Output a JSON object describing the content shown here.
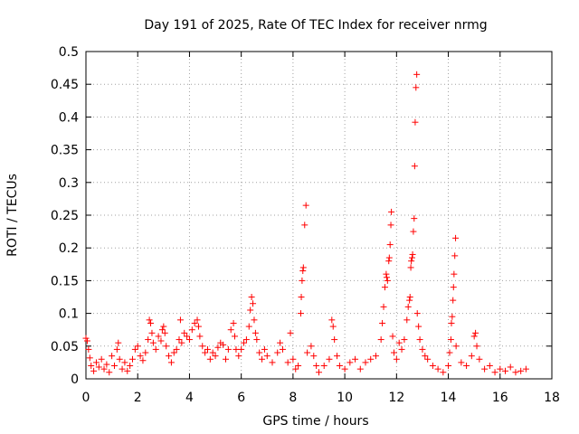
{
  "chart_data": {
    "type": "scatter",
    "title": "Day 191 of 2025, Rate Of TEC Index for receiver nrmg",
    "xlabel": "GPS time / hours",
    "ylabel": "ROTI / TECUs",
    "xlim": [
      0,
      18
    ],
    "ylim": [
      0,
      0.5
    ],
    "x_ticks": [
      0,
      2,
      4,
      6,
      8,
      10,
      12,
      14,
      16,
      18
    ],
    "y_ticks": [
      0,
      0.05,
      0.1,
      0.15,
      0.2,
      0.25,
      0.3,
      0.35,
      0.4,
      0.45,
      0.5
    ],
    "x_tick_labels": [
      "0",
      "2",
      "4",
      "6",
      "8",
      "10",
      "12",
      "14",
      "16",
      "18"
    ],
    "y_tick_labels": [
      "0",
      "0.05",
      "0.1",
      "0.15",
      "0.2",
      "0.25",
      "0.3",
      "0.35",
      "0.4",
      "0.45",
      "0.5"
    ],
    "grid": true,
    "marker": "+",
    "marker_color": "#ff0000",
    "series": [
      {
        "name": "ROTI",
        "points": [
          [
            0.0,
            0.062
          ],
          [
            0.05,
            0.058
          ],
          [
            0.1,
            0.045
          ],
          [
            0.15,
            0.032
          ],
          [
            0.2,
            0.02
          ],
          [
            0.3,
            0.012
          ],
          [
            0.4,
            0.025
          ],
          [
            0.5,
            0.018
          ],
          [
            0.6,
            0.03
          ],
          [
            0.7,
            0.015
          ],
          [
            0.8,
            0.022
          ],
          [
            0.9,
            0.01
          ],
          [
            1.0,
            0.035
          ],
          [
            1.1,
            0.02
          ],
          [
            1.2,
            0.045
          ],
          [
            1.25,
            0.055
          ],
          [
            1.3,
            0.03
          ],
          [
            1.4,
            0.015
          ],
          [
            1.5,
            0.025
          ],
          [
            1.6,
            0.012
          ],
          [
            1.7,
            0.02
          ],
          [
            1.8,
            0.03
          ],
          [
            1.9,
            0.045
          ],
          [
            2.0,
            0.05
          ],
          [
            2.1,
            0.035
          ],
          [
            2.2,
            0.028
          ],
          [
            2.3,
            0.04
          ],
          [
            2.4,
            0.06
          ],
          [
            2.45,
            0.09
          ],
          [
            2.5,
            0.085
          ],
          [
            2.55,
            0.07
          ],
          [
            2.6,
            0.055
          ],
          [
            2.7,
            0.045
          ],
          [
            2.8,
            0.065
          ],
          [
            2.9,
            0.058
          ],
          [
            2.95,
            0.075
          ],
          [
            3.0,
            0.08
          ],
          [
            3.05,
            0.07
          ],
          [
            3.1,
            0.05
          ],
          [
            3.2,
            0.035
          ],
          [
            3.3,
            0.025
          ],
          [
            3.4,
            0.04
          ],
          [
            3.5,
            0.045
          ],
          [
            3.6,
            0.06
          ],
          [
            3.65,
            0.09
          ],
          [
            3.7,
            0.055
          ],
          [
            3.8,
            0.07
          ],
          [
            3.9,
            0.065
          ],
          [
            4.0,
            0.06
          ],
          [
            4.1,
            0.075
          ],
          [
            4.2,
            0.085
          ],
          [
            4.3,
            0.09
          ],
          [
            4.35,
            0.08
          ],
          [
            4.4,
            0.065
          ],
          [
            4.5,
            0.05
          ],
          [
            4.6,
            0.04
          ],
          [
            4.7,
            0.045
          ],
          [
            4.8,
            0.03
          ],
          [
            4.9,
            0.04
          ],
          [
            5.0,
            0.035
          ],
          [
            5.1,
            0.048
          ],
          [
            5.2,
            0.055
          ],
          [
            5.3,
            0.052
          ],
          [
            5.4,
            0.03
          ],
          [
            5.5,
            0.045
          ],
          [
            5.6,
            0.075
          ],
          [
            5.7,
            0.085
          ],
          [
            5.75,
            0.065
          ],
          [
            5.8,
            0.045
          ],
          [
            5.9,
            0.035
          ],
          [
            6.0,
            0.045
          ],
          [
            6.1,
            0.055
          ],
          [
            6.2,
            0.06
          ],
          [
            6.3,
            0.08
          ],
          [
            6.35,
            0.105
          ],
          [
            6.4,
            0.125
          ],
          [
            6.45,
            0.115
          ],
          [
            6.5,
            0.09
          ],
          [
            6.55,
            0.07
          ],
          [
            6.6,
            0.06
          ],
          [
            6.7,
            0.04
          ],
          [
            6.8,
            0.03
          ],
          [
            6.9,
            0.045
          ],
          [
            7.0,
            0.035
          ],
          [
            7.2,
            0.025
          ],
          [
            7.4,
            0.04
          ],
          [
            7.5,
            0.055
          ],
          [
            7.6,
            0.045
          ],
          [
            7.8,
            0.025
          ],
          [
            7.9,
            0.07
          ],
          [
            8.0,
            0.03
          ],
          [
            8.1,
            0.015
          ],
          [
            8.2,
            0.02
          ],
          [
            8.3,
            0.1
          ],
          [
            8.32,
            0.125
          ],
          [
            8.35,
            0.15
          ],
          [
            8.38,
            0.165
          ],
          [
            8.4,
            0.17
          ],
          [
            8.45,
            0.235
          ],
          [
            8.5,
            0.265
          ],
          [
            8.55,
            0.04
          ],
          [
            8.7,
            0.05
          ],
          [
            8.8,
            0.035
          ],
          [
            8.9,
            0.02
          ],
          [
            9.0,
            0.01
          ],
          [
            9.2,
            0.02
          ],
          [
            9.4,
            0.03
          ],
          [
            9.5,
            0.09
          ],
          [
            9.55,
            0.08
          ],
          [
            9.6,
            0.06
          ],
          [
            9.7,
            0.035
          ],
          [
            9.8,
            0.02
          ],
          [
            10.0,
            0.015
          ],
          [
            10.2,
            0.025
          ],
          [
            10.4,
            0.03
          ],
          [
            10.6,
            0.015
          ],
          [
            10.8,
            0.025
          ],
          [
            11.0,
            0.03
          ],
          [
            11.2,
            0.035
          ],
          [
            11.4,
            0.06
          ],
          [
            11.45,
            0.085
          ],
          [
            11.5,
            0.11
          ],
          [
            11.55,
            0.14
          ],
          [
            11.6,
            0.16
          ],
          [
            11.62,
            0.155
          ],
          [
            11.65,
            0.15
          ],
          [
            11.7,
            0.18
          ],
          [
            11.72,
            0.185
          ],
          [
            11.75,
            0.205
          ],
          [
            11.78,
            0.235
          ],
          [
            11.8,
            0.255
          ],
          [
            11.85,
            0.065
          ],
          [
            11.9,
            0.04
          ],
          [
            12.0,
            0.03
          ],
          [
            12.1,
            0.055
          ],
          [
            12.2,
            0.045
          ],
          [
            12.3,
            0.06
          ],
          [
            12.4,
            0.09
          ],
          [
            12.45,
            0.11
          ],
          [
            12.5,
            0.12
          ],
          [
            12.52,
            0.125
          ],
          [
            12.55,
            0.17
          ],
          [
            12.57,
            0.18
          ],
          [
            12.6,
            0.185
          ],
          [
            12.62,
            0.19
          ],
          [
            12.65,
            0.225
          ],
          [
            12.68,
            0.245
          ],
          [
            12.7,
            0.325
          ],
          [
            12.72,
            0.392
          ],
          [
            12.75,
            0.445
          ],
          [
            12.78,
            0.465
          ],
          [
            12.8,
            0.1
          ],
          [
            12.85,
            0.08
          ],
          [
            12.9,
            0.06
          ],
          [
            13.0,
            0.045
          ],
          [
            13.1,
            0.035
          ],
          [
            13.2,
            0.03
          ],
          [
            13.4,
            0.02
          ],
          [
            13.6,
            0.015
          ],
          [
            13.8,
            0.01
          ],
          [
            14.0,
            0.02
          ],
          [
            14.05,
            0.04
          ],
          [
            14.1,
            0.06
          ],
          [
            14.12,
            0.085
          ],
          [
            14.15,
            0.095
          ],
          [
            14.18,
            0.12
          ],
          [
            14.2,
            0.14
          ],
          [
            14.22,
            0.16
          ],
          [
            14.25,
            0.188
          ],
          [
            14.28,
            0.215
          ],
          [
            14.3,
            0.05
          ],
          [
            14.5,
            0.025
          ],
          [
            14.7,
            0.02
          ],
          [
            14.9,
            0.035
          ],
          [
            15.0,
            0.065
          ],
          [
            15.05,
            0.07
          ],
          [
            15.1,
            0.05
          ],
          [
            15.2,
            0.03
          ],
          [
            15.4,
            0.015
          ],
          [
            15.6,
            0.02
          ],
          [
            15.8,
            0.01
          ],
          [
            16.0,
            0.015
          ],
          [
            16.2,
            0.012
          ],
          [
            16.4,
            0.018
          ],
          [
            16.6,
            0.01
          ],
          [
            16.8,
            0.012
          ],
          [
            17.0,
            0.015
          ]
        ]
      }
    ]
  }
}
